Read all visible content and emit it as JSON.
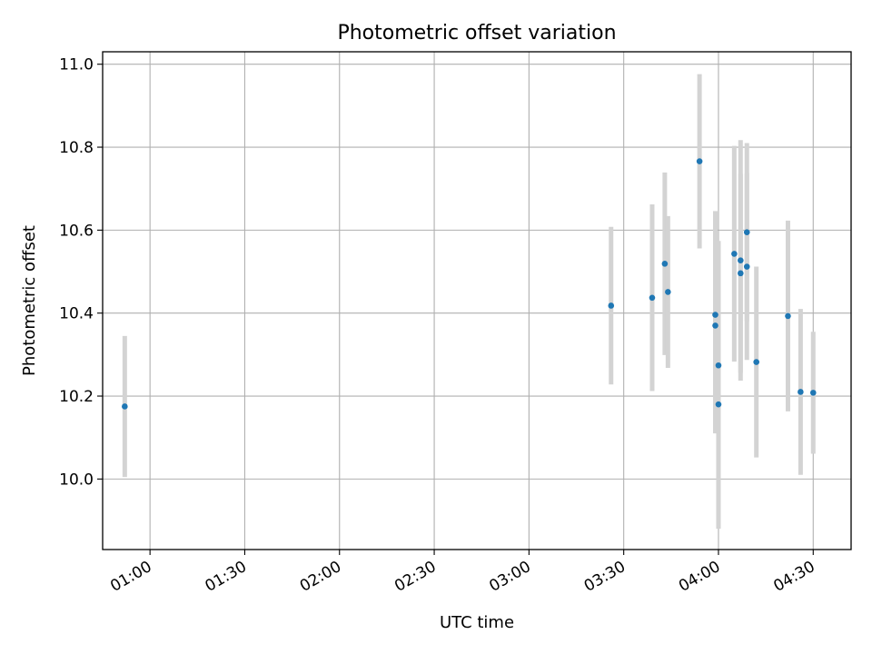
{
  "chart_data": {
    "type": "scatter",
    "title": "Photometric offset variation",
    "xlabel": "UTC time",
    "ylabel": "Photometric offset",
    "x_unit": "time",
    "xlim": [
      "00:45",
      "04:42"
    ],
    "ylim": [
      9.83,
      11.03
    ],
    "x_ticks": [
      "01:00",
      "01:30",
      "02:00",
      "02:30",
      "03:00",
      "03:30",
      "04:00",
      "04:30"
    ],
    "y_ticks": [
      "10.0",
      "10.2",
      "10.4",
      "10.6",
      "10.8",
      "11.0"
    ],
    "grid": true,
    "marker_color": "#1f77b4",
    "errorbar_color": "#d3d3d3",
    "points": [
      {
        "x": "00:52",
        "y": 10.175,
        "err": 0.17
      },
      {
        "x": "03:26",
        "y": 10.418,
        "err": 0.19
      },
      {
        "x": "03:39",
        "y": 10.437,
        "err": 0.225
      },
      {
        "x": "03:43",
        "y": 10.519,
        "err": 0.22
      },
      {
        "x": "03:44",
        "y": 10.451,
        "err": 0.183
      },
      {
        "x": "03:54",
        "y": 10.766,
        "err": 0.21
      },
      {
        "x": "03:59",
        "y": 10.396,
        "err": 0.25
      },
      {
        "x": "03:59",
        "y": 10.37,
        "err": 0.26
      },
      {
        "x": "04:00",
        "y": 10.274,
        "err": 0.3
      },
      {
        "x": "04:00",
        "y": 10.18,
        "err": 0.3
      },
      {
        "x": "04:05",
        "y": 10.543,
        "err": 0.26
      },
      {
        "x": "04:07",
        "y": 10.527,
        "err": 0.29
      },
      {
        "x": "04:07",
        "y": 10.496,
        "err": 0.24
      },
      {
        "x": "04:09",
        "y": 10.512,
        "err": 0.225
      },
      {
        "x": "04:09",
        "y": 10.595,
        "err": 0.215
      },
      {
        "x": "04:12",
        "y": 10.282,
        "err": 0.23
      },
      {
        "x": "04:22",
        "y": 10.393,
        "err": 0.23
      },
      {
        "x": "04:26",
        "y": 10.21,
        "err": 0.2
      },
      {
        "x": "04:30",
        "y": 10.208,
        "err": 0.147
      }
    ]
  }
}
